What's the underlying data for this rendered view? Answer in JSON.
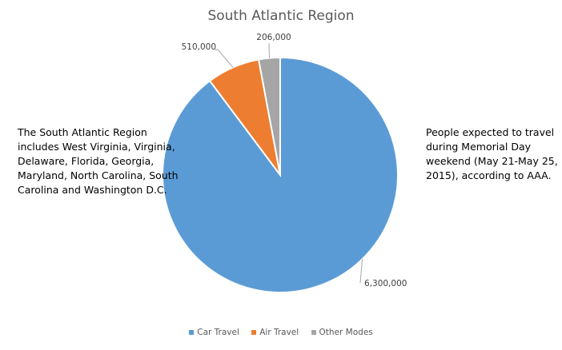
{
  "chart_data": {
    "type": "pie",
    "title": "South Atlantic Region",
    "categories": [
      "Car Travel",
      "Air Travel",
      "Other Modes"
    ],
    "values": [
      6300000,
      510000,
      206000
    ],
    "data_labels": [
      "6,300,000",
      "510,000",
      "206,000"
    ],
    "colors": [
      "#5B9BD5",
      "#ED7D31",
      "#A5A5A5"
    ],
    "legend_position": "bottom",
    "start_angle": "top, clockwise"
  },
  "annotations": {
    "left": "The South Atlantic Region includes West Virginia, Virginia, Delaware, Florida, Georgia, Maryland, North Carolina, South Carolina and Washington D.C.",
    "right": "People expected to travel during Memorial Day weekend (May 21-May 25, 2015), according to AAA."
  }
}
